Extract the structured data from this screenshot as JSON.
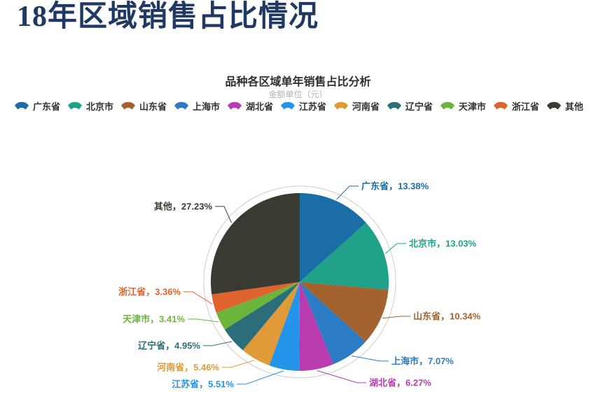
{
  "page": {
    "title": "18年区域销售占比情况"
  },
  "chart_data": {
    "type": "pie",
    "title": "品种各区域单年销售占比分析",
    "subtitle": "金额单位（元）",
    "legend_position": "top",
    "start_angle": "top",
    "direction": "clockwise",
    "label_format": "{name}，{value}%",
    "value_suffix": "%",
    "series": [
      {
        "name": "广东省",
        "value": 13.38,
        "color": "#1a6da5"
      },
      {
        "name": "北京市",
        "value": 13.03,
        "color": "#1fa287"
      },
      {
        "name": "山东省",
        "value": 10.34,
        "color": "#a4622f"
      },
      {
        "name": "上海市",
        "value": 7.07,
        "color": "#2b7cc4"
      },
      {
        "name": "湖北省",
        "value": 6.27,
        "color": "#b83cb0"
      },
      {
        "name": "江苏省",
        "value": 5.51,
        "color": "#2493ea"
      },
      {
        "name": "河南省",
        "value": 5.46,
        "color": "#e09a38"
      },
      {
        "name": "辽宁省",
        "value": 4.95,
        "color": "#2b6e79"
      },
      {
        "name": "天津市",
        "value": 3.41,
        "color": "#6cb43c"
      },
      {
        "name": "浙江省",
        "value": 3.36,
        "color": "#e0622c"
      },
      {
        "name": "其他",
        "value": 27.23,
        "color": "#3a3a31"
      }
    ]
  },
  "colors": {
    "page_title": "#1f3864",
    "chart_title": "#2f2f2f",
    "chart_subtitle": "#b3b3b3",
    "legend_text": "#333333",
    "outer_ring": "#cccccc"
  }
}
